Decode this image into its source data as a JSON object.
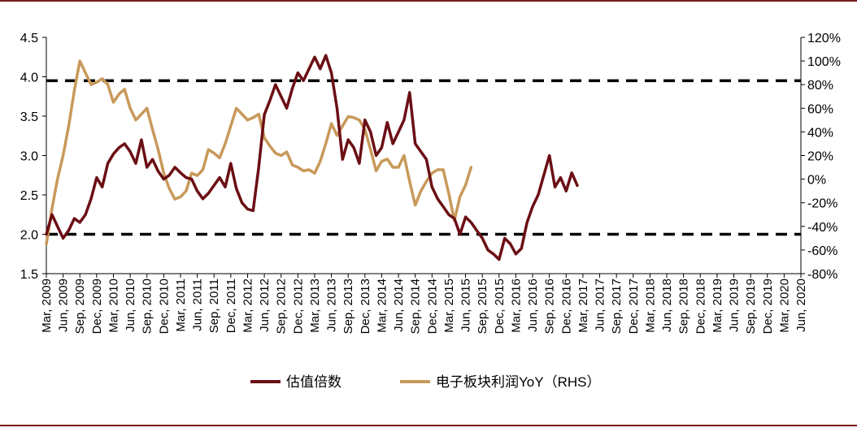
{
  "colors": {
    "valuation": "#6b0f14",
    "profit": "#c8995a",
    "reference_line": "#000000",
    "frame": "#7a1d20"
  },
  "legend": {
    "valuation": "估值倍数",
    "profit": "电子板块利润YoY（RHS）"
  },
  "chart_data": {
    "type": "line",
    "title": "",
    "xlabel": "",
    "legend_position": "bottom-center",
    "grid": false,
    "x_ticks": [
      "Mar, 2009",
      "Jun, 2009",
      "Sep, 2009",
      "Dec, 2009",
      "Mar, 2010",
      "Jun, 2010",
      "Sep, 2010",
      "Dec, 2010",
      "Mar, 2011",
      "Jun, 2011",
      "Sep, 2011",
      "Dec, 2011",
      "Mar, 2012",
      "Jun, 2012",
      "Sep, 2012",
      "Dec, 2012",
      "Mar, 2013",
      "Jun, 2013",
      "Sep, 2013",
      "Dec, 2013",
      "Mar, 2014",
      "Jun, 2014",
      "Sep, 2014",
      "Dec, 2014",
      "Mar, 2015",
      "Jun, 2015",
      "Sep, 2015",
      "Dec, 2015",
      "Mar, 2016",
      "Jun, 2016",
      "Sep, 2016",
      "Dec, 2016",
      "Mar, 2017",
      "Jun, 2017",
      "Sep, 2017",
      "Dec, 2017",
      "Mar, 2018",
      "Jun, 2018",
      "Sep, 2018",
      "Dec, 2018",
      "Mar, 2019",
      "Jun, 2019",
      "Sep, 2019",
      "Dec, 2019",
      "Mar, 2020",
      "Jun, 2020"
    ],
    "y_left": {
      "ylim": [
        1.5,
        4.5
      ],
      "ticks": [
        "1.5",
        "2.0",
        "2.5",
        "3.0",
        "3.5",
        "4.0",
        "4.5"
      ],
      "reference_lines": [
        2.0,
        3.95
      ]
    },
    "y_right": {
      "ylim": [
        -80,
        120
      ],
      "ticks": [
        "-80%",
        "-60%",
        "-40%",
        "-20%",
        "0%",
        "20%",
        "40%",
        "60%",
        "80%",
        "100%",
        "120%"
      ]
    },
    "series": [
      {
        "name": "估值倍数",
        "axis": "left",
        "points": [
          [
            "Mar, 2009",
            2.0
          ],
          [
            "Apr, 2009",
            2.25
          ],
          [
            "May, 2009",
            2.1
          ],
          [
            "Jun, 2009",
            1.95
          ],
          [
            "Jul, 2009",
            2.05
          ],
          [
            "Aug, 2009",
            2.2
          ],
          [
            "Sep, 2009",
            2.15
          ],
          [
            "Oct, 2009",
            2.25
          ],
          [
            "Nov, 2009",
            2.45
          ],
          [
            "Dec, 2009",
            2.72
          ],
          [
            "Jan, 2010",
            2.6
          ],
          [
            "Feb, 2010",
            2.9
          ],
          [
            "Mar, 2010",
            3.02
          ],
          [
            "Apr, 2010",
            3.1
          ],
          [
            "May, 2010",
            3.15
          ],
          [
            "Jun, 2010",
            3.05
          ],
          [
            "Jul, 2010",
            2.9
          ],
          [
            "Aug, 2010",
            3.2
          ],
          [
            "Sep, 2010",
            2.85
          ],
          [
            "Oct, 2010",
            2.95
          ],
          [
            "Nov, 2010",
            2.8
          ],
          [
            "Dec, 2010",
            2.7
          ],
          [
            "Jan, 2011",
            2.75
          ],
          [
            "Feb, 2011",
            2.85
          ],
          [
            "Mar, 2011",
            2.78
          ],
          [
            "Apr, 2011",
            2.72
          ],
          [
            "May, 2011",
            2.7
          ],
          [
            "Jun, 2011",
            2.55
          ],
          [
            "Jul, 2011",
            2.45
          ],
          [
            "Aug, 2011",
            2.52
          ],
          [
            "Sep, 2011",
            2.62
          ],
          [
            "Oct, 2011",
            2.72
          ],
          [
            "Nov, 2011",
            2.6
          ],
          [
            "Dec, 2011",
            2.9
          ],
          [
            "Jan, 2012",
            2.58
          ],
          [
            "Feb, 2012",
            2.4
          ],
          [
            "Mar, 2012",
            2.32
          ],
          [
            "Apr, 2012",
            2.3
          ],
          [
            "May, 2012",
            2.85
          ],
          [
            "Jun, 2012",
            3.52
          ],
          [
            "Jul, 2012",
            3.7
          ],
          [
            "Aug, 2012",
            3.9
          ],
          [
            "Sep, 2012",
            3.75
          ],
          [
            "Oct, 2012",
            3.6
          ],
          [
            "Nov, 2012",
            3.85
          ],
          [
            "Dec, 2012",
            4.05
          ],
          [
            "Jan, 2013",
            3.95
          ],
          [
            "Feb, 2013",
            4.1
          ],
          [
            "Mar, 2013",
            4.25
          ],
          [
            "Apr, 2013",
            4.1
          ],
          [
            "May, 2013",
            4.27
          ],
          [
            "Jun, 2013",
            4.05
          ],
          [
            "Jul, 2013",
            3.6
          ],
          [
            "Aug, 2013",
            2.95
          ],
          [
            "Sep, 2013",
            3.2
          ],
          [
            "Oct, 2013",
            3.1
          ],
          [
            "Nov, 2013",
            2.9
          ],
          [
            "Dec, 2013",
            3.45
          ],
          [
            "Jan, 2014",
            3.3
          ],
          [
            "Feb, 2014",
            3.0
          ],
          [
            "Mar, 2014",
            3.1
          ],
          [
            "Apr, 2014",
            3.42
          ],
          [
            "May, 2014",
            3.15
          ],
          [
            "Jun, 2014",
            3.3
          ],
          [
            "Jul, 2014",
            3.45
          ],
          [
            "Aug, 2014",
            3.8
          ],
          [
            "Sep, 2014",
            3.15
          ],
          [
            "Oct, 2014",
            3.05
          ],
          [
            "Nov, 2014",
            2.95
          ],
          [
            "Dec, 2014",
            2.6
          ],
          [
            "Jan, 2015",
            2.45
          ],
          [
            "Feb, 2015",
            2.35
          ],
          [
            "Mar, 2015",
            2.25
          ],
          [
            "Apr, 2015",
            2.2
          ],
          [
            "May, 2015",
            2.0
          ],
          [
            "Jun, 2015",
            2.22
          ],
          [
            "Jul, 2015",
            2.15
          ],
          [
            "Aug, 2015",
            2.05
          ],
          [
            "Sep, 2015",
            1.95
          ],
          [
            "Oct, 2015",
            1.8
          ],
          [
            "Nov, 2015",
            1.75
          ],
          [
            "Dec, 2015",
            1.68
          ],
          [
            "Jan, 2016",
            1.95
          ],
          [
            "Feb, 2016",
            1.88
          ],
          [
            "Mar, 2016",
            1.75
          ],
          [
            "Apr, 2016",
            1.82
          ],
          [
            "May, 2016",
            2.15
          ],
          [
            "Jun, 2016",
            2.35
          ],
          [
            "Jul, 2016",
            2.5
          ],
          [
            "Aug, 2016",
            2.75
          ],
          [
            "Sep, 2016",
            3.0
          ],
          [
            "Oct, 2016",
            2.6
          ],
          [
            "Nov, 2016",
            2.72
          ],
          [
            "Dec, 2016",
            2.55
          ],
          [
            "Jan, 2017",
            2.78
          ],
          [
            "Feb, 2017",
            2.62
          ]
        ]
      },
      {
        "name": "电子板块利润YoY（RHS）",
        "axis": "right",
        "points": [
          [
            "Mar, 2009",
            -55
          ],
          [
            "Apr, 2009",
            -25
          ],
          [
            "May, 2009",
            0
          ],
          [
            "Jun, 2009",
            20
          ],
          [
            "Jul, 2009",
            45
          ],
          [
            "Aug, 2009",
            75
          ],
          [
            "Sep, 2009",
            100
          ],
          [
            "Oct, 2009",
            90
          ],
          [
            "Nov, 2009",
            80
          ],
          [
            "Dec, 2009",
            82
          ],
          [
            "Jan, 2010",
            85
          ],
          [
            "Feb, 2010",
            80
          ],
          [
            "Mar, 2010",
            65
          ],
          [
            "Apr, 2010",
            72
          ],
          [
            "May, 2010",
            76
          ],
          [
            "Jun, 2010",
            60
          ],
          [
            "Jul, 2010",
            50
          ],
          [
            "Aug, 2010",
            55
          ],
          [
            "Sep, 2010",
            60
          ],
          [
            "Oct, 2010",
            42
          ],
          [
            "Nov, 2010",
            25
          ],
          [
            "Dec, 2010",
            5
          ],
          [
            "Jan, 2011",
            -8
          ],
          [
            "Feb, 2011",
            -17
          ],
          [
            "Mar, 2011",
            -15
          ],
          [
            "Apr, 2011",
            -10
          ],
          [
            "May, 2011",
            5
          ],
          [
            "Jun, 2011",
            3
          ],
          [
            "Jul, 2011",
            8
          ],
          [
            "Aug, 2011",
            25
          ],
          [
            "Sep, 2011",
            22
          ],
          [
            "Oct, 2011",
            18
          ],
          [
            "Nov, 2011",
            30
          ],
          [
            "Dec, 2011",
            45
          ],
          [
            "Jan, 2012",
            60
          ],
          [
            "Feb, 2012",
            55
          ],
          [
            "Mar, 2012",
            50
          ],
          [
            "Apr, 2012",
            52
          ],
          [
            "May, 2012",
            55
          ],
          [
            "Jun, 2012",
            35
          ],
          [
            "Jul, 2012",
            28
          ],
          [
            "Aug, 2012",
            22
          ],
          [
            "Sep, 2012",
            20
          ],
          [
            "Oct, 2012",
            23
          ],
          [
            "Nov, 2012",
            12
          ],
          [
            "Dec, 2012",
            10
          ],
          [
            "Jan, 2013",
            7
          ],
          [
            "Feb, 2013",
            8
          ],
          [
            "Mar, 2013",
            5
          ],
          [
            "Apr, 2013",
            15
          ],
          [
            "May, 2013",
            30
          ],
          [
            "Jun, 2013",
            47
          ],
          [
            "Jul, 2013",
            37
          ],
          [
            "Aug, 2013",
            45
          ],
          [
            "Sep, 2013",
            53
          ],
          [
            "Oct, 2013",
            52
          ],
          [
            "Nov, 2013",
            50
          ],
          [
            "Dec, 2013",
            42
          ],
          [
            "Jan, 2014",
            25
          ],
          [
            "Feb, 2014",
            7
          ],
          [
            "Mar, 2014",
            15
          ],
          [
            "Apr, 2014",
            17
          ],
          [
            "May, 2014",
            10
          ],
          [
            "Jun, 2014",
            10
          ],
          [
            "Jul, 2014",
            20
          ],
          [
            "Aug, 2014",
            -2
          ],
          [
            "Sep, 2014",
            -22
          ],
          [
            "Oct, 2014",
            -10
          ],
          [
            "Nov, 2014",
            -2
          ],
          [
            "Dec, 2014",
            5
          ],
          [
            "Jan, 2015",
            8
          ],
          [
            "Feb, 2015",
            8
          ],
          [
            "Mar, 2015",
            -12
          ],
          [
            "Apr, 2015",
            -35
          ],
          [
            "May, 2015",
            -15
          ],
          [
            "Jun, 2015",
            -5
          ],
          [
            "Jul, 2015",
            10
          ]
        ]
      }
    ]
  }
}
